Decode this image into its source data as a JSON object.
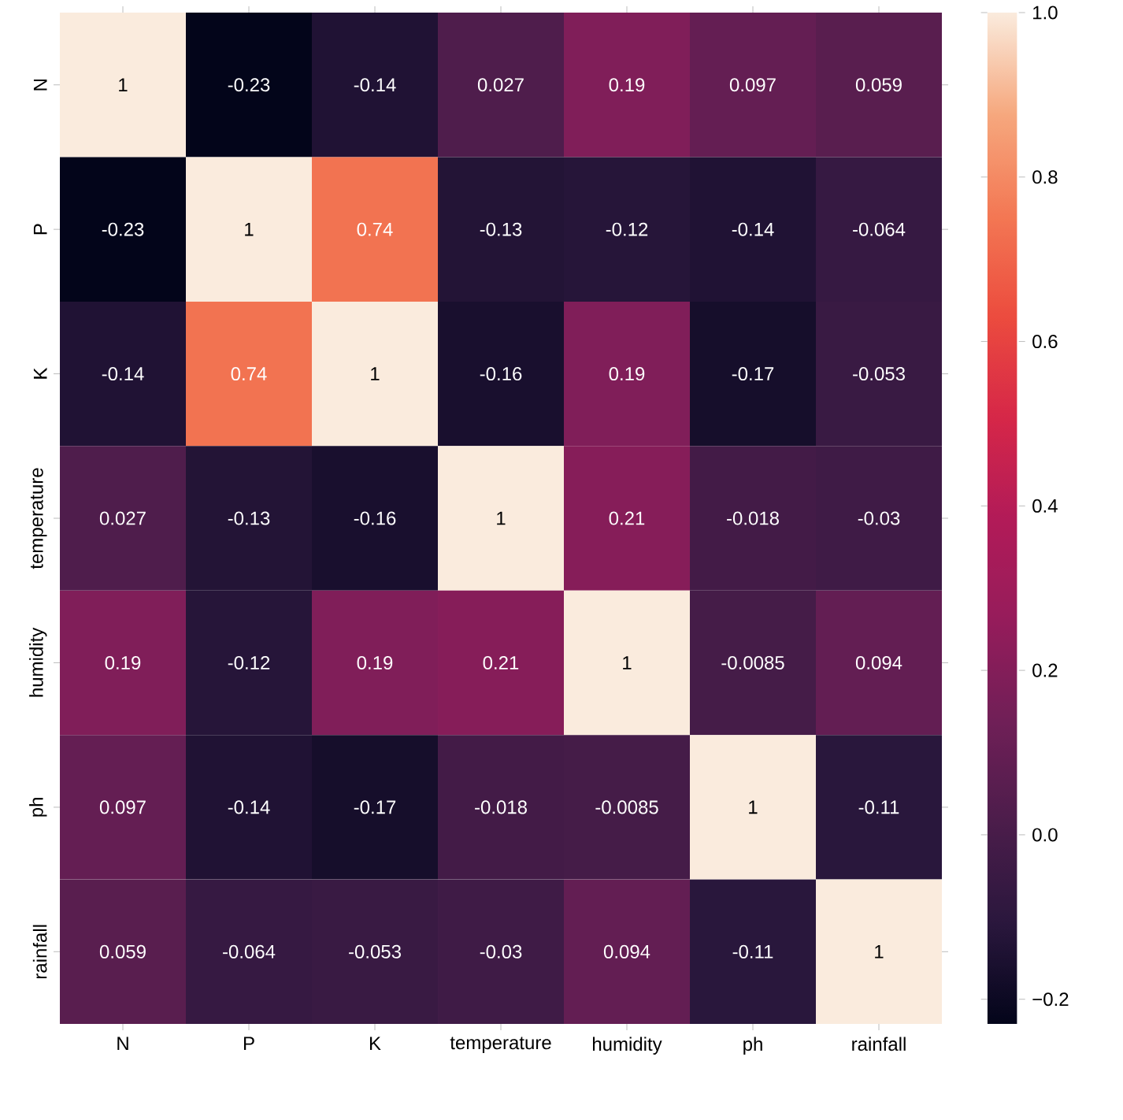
{
  "chart_data": {
    "type": "heatmap",
    "categories": [
      "N",
      "P",
      "K",
      "temperature",
      "humidity",
      "ph",
      "rainfall"
    ],
    "y_categories": [
      "N",
      "P",
      "K",
      "temperature",
      "humidity",
      "ph",
      "rainfall"
    ],
    "cells": [
      [
        1,
        -0.23,
        -0.14,
        0.027,
        0.19,
        0.097,
        0.059
      ],
      [
        -0.23,
        1,
        0.74,
        -0.13,
        -0.12,
        -0.14,
        -0.064
      ],
      [
        -0.14,
        0.74,
        1,
        -0.16,
        0.19,
        -0.17,
        -0.053
      ],
      [
        0.027,
        -0.13,
        -0.16,
        1,
        0.21,
        -0.018,
        -0.03
      ],
      [
        0.19,
        -0.12,
        0.19,
        0.21,
        1,
        -0.0085,
        0.094
      ],
      [
        0.097,
        -0.14,
        -0.17,
        -0.018,
        -0.0085,
        1,
        -0.11
      ],
      [
        0.059,
        -0.064,
        -0.053,
        -0.03,
        0.094,
        -0.11,
        1
      ]
    ],
    "data_labels": true,
    "clim": [
      -0.23,
      1
    ],
    "cticks": [
      {
        "value": -0.2,
        "label": "−0.2"
      },
      {
        "value": 0,
        "label": "0.0"
      },
      {
        "value": 0.2,
        "label": "0.2"
      },
      {
        "value": 0.4,
        "label": "0.4"
      },
      {
        "value": 0.6,
        "label": "0.6"
      },
      {
        "value": 0.8,
        "label": "0.8"
      },
      {
        "value": 1,
        "label": "1.0"
      }
    ]
  }
}
